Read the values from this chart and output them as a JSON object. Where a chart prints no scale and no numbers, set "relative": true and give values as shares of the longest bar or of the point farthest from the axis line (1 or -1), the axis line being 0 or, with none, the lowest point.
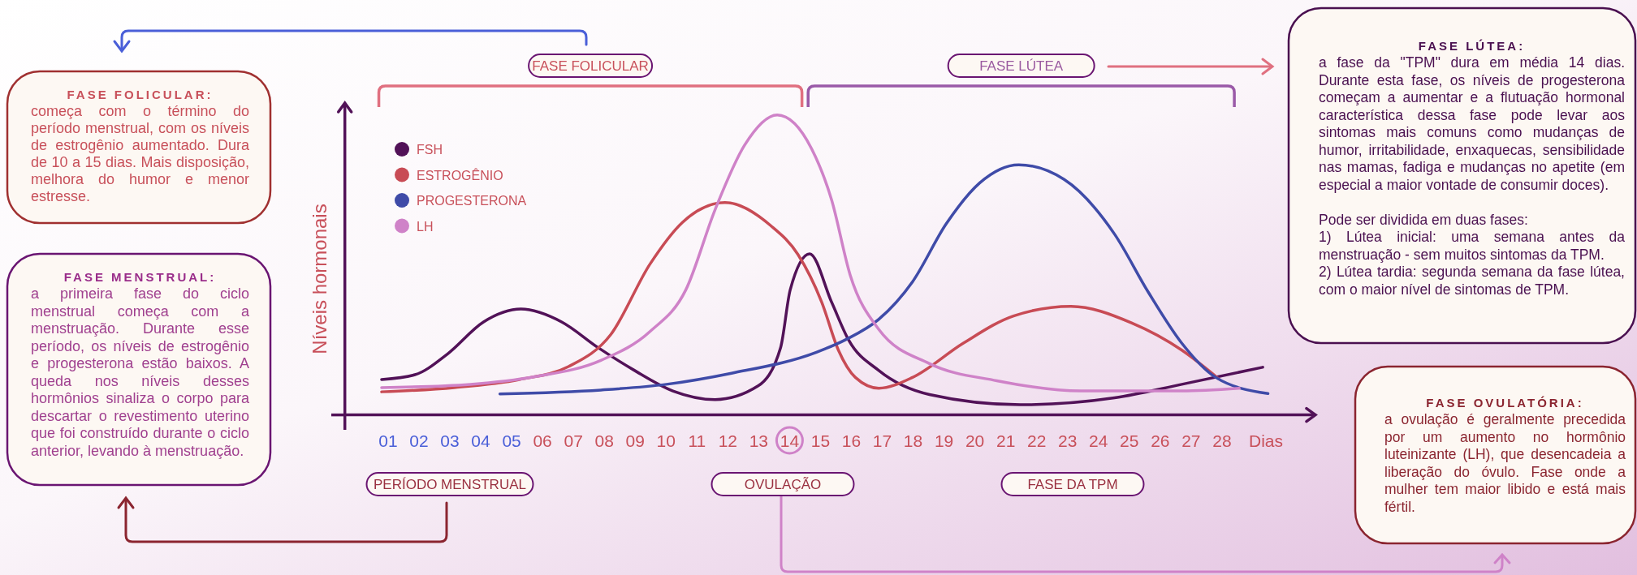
{
  "chart_data": {
    "type": "line",
    "relative": true,
    "xlabel": "Dias",
    "ylabel": "Níveis hormonais",
    "legend": "top left",
    "xlim": [
      -0.4,
      31
    ],
    "xticks": [
      {
        "value": 1,
        "label": "01"
      },
      {
        "value": 2,
        "label": "02"
      },
      {
        "value": 3,
        "label": "03"
      },
      {
        "value": 4,
        "label": "04"
      },
      {
        "value": 5,
        "label": "05"
      },
      {
        "value": 6,
        "label": "06"
      },
      {
        "value": 7,
        "label": "07"
      },
      {
        "value": 8,
        "label": "08"
      },
      {
        "value": 9,
        "label": "09"
      },
      10,
      11,
      12,
      13,
      14,
      15,
      16,
      17,
      18,
      19,
      20,
      21,
      22,
      23,
      24,
      25,
      26,
      27,
      28
    ],
    "series": [
      {
        "name": "FSH",
        "color": "#521258",
        "x": [
          0.79,
          1.87,
          2.92,
          4.09,
          5.3,
          6.62,
          7.79,
          8.95,
          10.22,
          11.59,
          12.97,
          13.71,
          14.02,
          14.65,
          15.36,
          15.91,
          16.89,
          18.53,
          21.47,
          24.52,
          26.7,
          29.32
        ],
        "values": [
          0.118,
          0.134,
          0.203,
          0.31,
          0.353,
          0.31,
          0.225,
          0.15,
          0.08,
          0.051,
          0.096,
          0.225,
          0.417,
          0.537,
          0.376,
          0.25,
          0.148,
          0.068,
          0.034,
          0.057,
          0.102,
          0.159
        ]
      },
      {
        "name": "ESTROGÊNIO",
        "color": "#c84b55",
        "x": [
          0.79,
          3.14,
          5.25,
          6.84,
          8.21,
          9.48,
          10.53,
          11.91,
          13.39,
          14.27,
          15.04,
          15.58,
          16.13,
          16.89,
          17.98,
          19.62,
          21.25,
          23.11,
          25.07,
          26.7,
          27.9
        ],
        "values": [
          0.077,
          0.091,
          0.118,
          0.161,
          0.268,
          0.503,
          0.642,
          0.708,
          0.631,
          0.535,
          0.376,
          0.216,
          0.125,
          0.089,
          0.125,
          0.239,
          0.33,
          0.362,
          0.307,
          0.216,
          0.12
        ]
      },
      {
        "name": "PROGESTERONA",
        "color": "#3f4ba8",
        "x": [
          4.62,
          7.89,
          10.01,
          12.12,
          14.87,
          15.8,
          16.89,
          17.98,
          19.07,
          20.16,
          21.42,
          22.89,
          24.52,
          25.61,
          26.7,
          27.8,
          29.49
        ],
        "values": [
          0.07,
          0.083,
          0.102,
          0.139,
          0.209,
          0.25,
          0.319,
          0.444,
          0.637,
          0.774,
          0.834,
          0.785,
          0.603,
          0.41,
          0.239,
          0.125,
          0.071
        ]
      },
      {
        "name": "LH",
        "color": "#cf82c8",
        "x": [
          0.79,
          3.66,
          5.78,
          7.89,
          9.48,
          10.64,
          11.59,
          12.54,
          13.6,
          14.71,
          15.36,
          15.96,
          16.89,
          18.53,
          20.71,
          23.43,
          26.7,
          28.56
        ],
        "values": [
          0.091,
          0.102,
          0.128,
          0.182,
          0.278,
          0.417,
          0.685,
          0.899,
          1,
          0.888,
          0.717,
          0.467,
          0.285,
          0.171,
          0.114,
          0.08,
          0.08,
          0.089
        ]
      }
    ],
    "annotations": [
      "FASE FOLICULAR:",
      "começa com o término do período menstrual, com os níveis de estrogênio aumentado. Dura de 10 a 15 dias. Mais disposição, melhora do humor e menor estresse.",
      "FASE MENSTRUAL:",
      "a primeira fase do ciclo menstrual começa com a menstruação. Durante esse período, os níveis de estrogênio e progesterona estão baixos. A queda nos níveis desses hormônios sinaliza o corpo para descartar o revestimento uterino que foi construído durante o ciclo anterior, levando à menstruação.",
      "FASE LÚTEA:",
      "a fase da \"TPM\" dura em média 14 dias. Durante esta fase, os níveis de progesterona começam a aumentar e a flutuação hormonal característica dessa fase pode levar aos sintomas mais comuns como mudanças de humor, irritabilidade, enxaquecas, sensibilidade nas mamas, fadiga e mudanças no apetite (em especial a maior vontade de consumir doces).\n\nPode ser dividida em duas fases:\n1) Lútea inicial: uma semana antes da menstruação - sem muitos sintomas da TPM.\n2) Lútea tardia: segunda semana da fase lútea, com o maior nível de sintomas de TPM.",
      "FASE OVULATÓRIA:",
      "a ovulação é geralmente precedida por um aumento no hormônio luteinizante (LH), que desencadeia a liberação do óvulo. Fase onde a mulher tem maior libido e está mais fértil.",
      "PERÍODO MENSTRUAL",
      "OVULAÇÃO",
      "FASE DA TPM",
      "FASE FOLICULAR",
      "FASE LÚTEA"
    ]
  }
}
